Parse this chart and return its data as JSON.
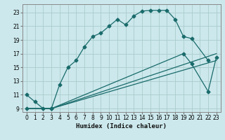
{
  "xlabel": "Humidex (Indice chaleur)",
  "bg_color": "#cce8ec",
  "grid_color": "#aacccc",
  "line_color": "#1a6b6b",
  "xlim": [
    -0.5,
    23.5
  ],
  "ylim": [
    8.5,
    24.2
  ],
  "xticks": [
    0,
    1,
    2,
    3,
    4,
    5,
    6,
    7,
    8,
    9,
    10,
    11,
    12,
    13,
    14,
    15,
    16,
    17,
    18,
    19,
    20,
    21,
    22,
    23
  ],
  "yticks": [
    9,
    11,
    13,
    15,
    17,
    19,
    21,
    23
  ],
  "line1_x": [
    0,
    1,
    2,
    3,
    4,
    5,
    6,
    7,
    8,
    9,
    10,
    11,
    12,
    13,
    14,
    15,
    16,
    17,
    18,
    19,
    20,
    22
  ],
  "line1_y": [
    11,
    10,
    9,
    9,
    12.5,
    15,
    16,
    18,
    19.5,
    20,
    21,
    22,
    21.2,
    22.5,
    23.2,
    23.3,
    23.3,
    23.3,
    22,
    19.5,
    19.2,
    16
  ],
  "line2_x": [
    0,
    3,
    19,
    20,
    22,
    23
  ],
  "line2_y": [
    9,
    9,
    17,
    15.5,
    11.5,
    16.5
  ],
  "line3_x": [
    0,
    3,
    23
  ],
  "line3_y": [
    9,
    9,
    17
  ],
  "line4_x": [
    0,
    3,
    23
  ],
  "line4_y": [
    9,
    9,
    16
  ]
}
